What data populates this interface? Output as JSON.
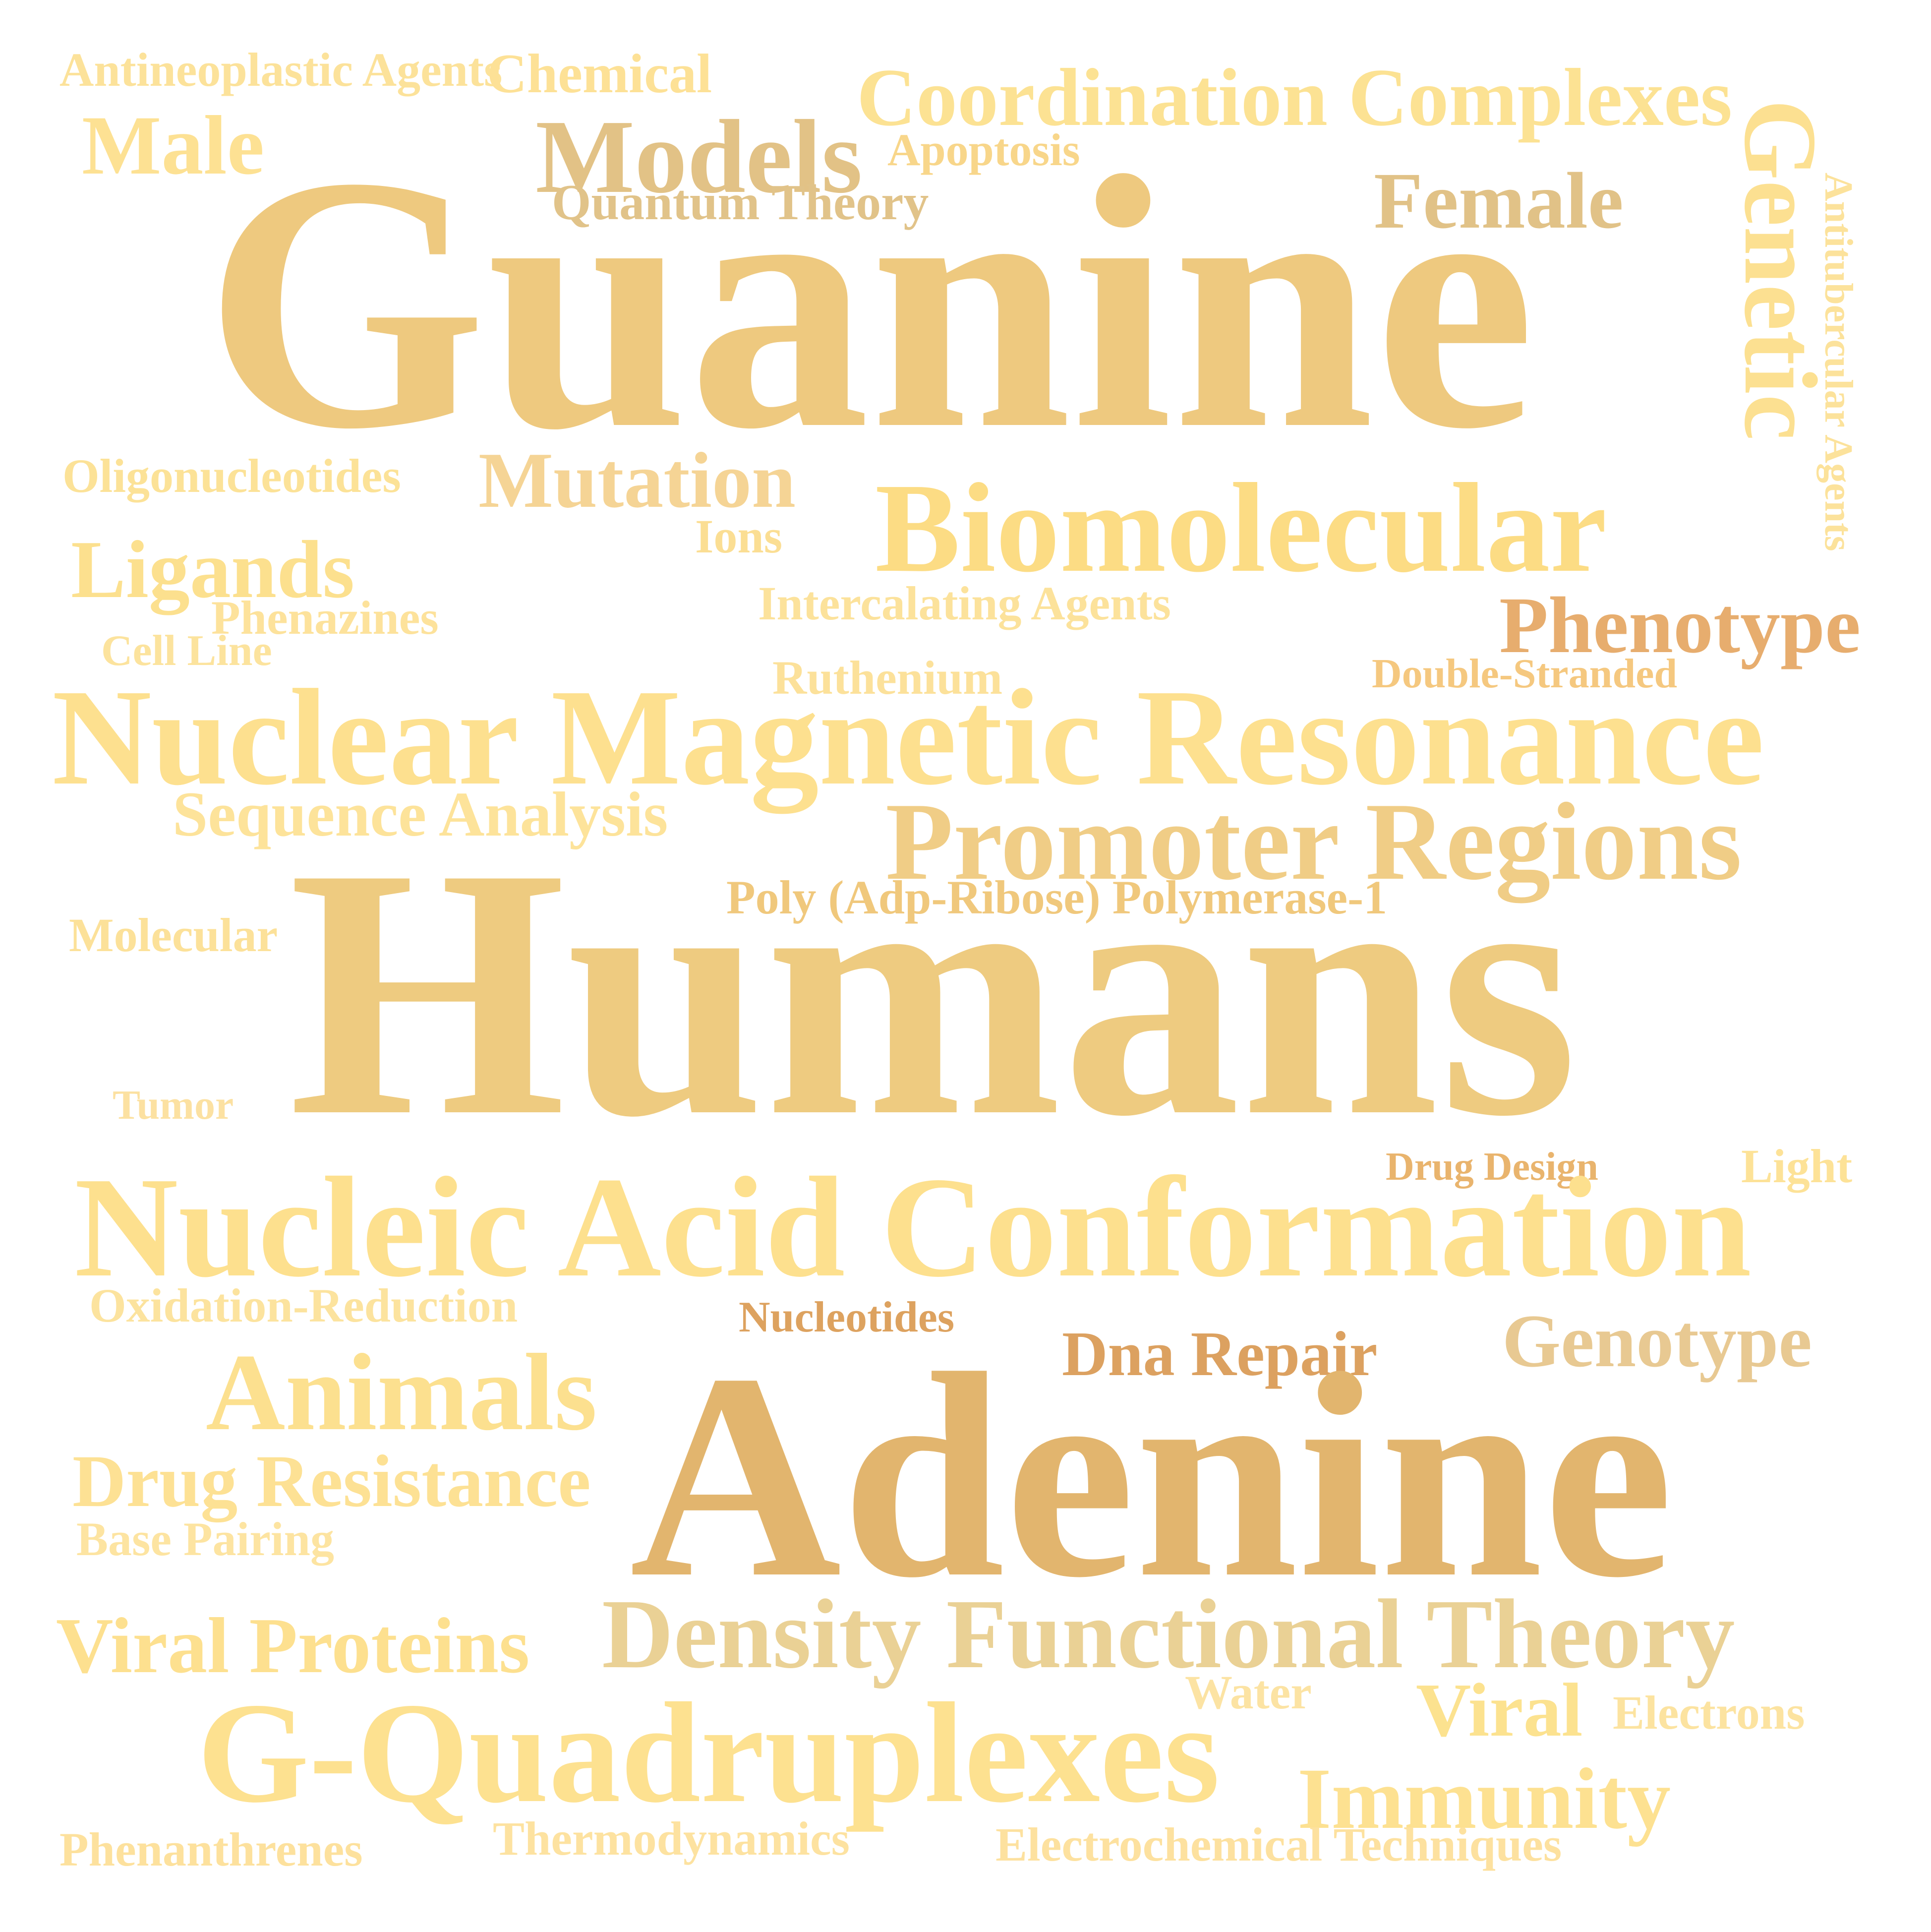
{
  "words": [
    {
      "text": "Antineoplastic Agents",
      "color": "#FCE29A"
    },
    {
      "text": "Chemical",
      "color": "#FDE196"
    },
    {
      "text": "Coordination Complexes",
      "color": "#FCE293"
    },
    {
      "text": "Male",
      "color": "#FDE193"
    },
    {
      "text": "Models",
      "color": "#E2C286"
    },
    {
      "text": "Apoptosis",
      "color": "#F8D68A"
    },
    {
      "text": "Quantum Theory",
      "color": "#E1C389"
    },
    {
      "text": "Female",
      "color": "#E1C287"
    },
    {
      "text": "Genetic",
      "color": "#FCE091"
    },
    {
      "text": "Antitubercular Agents",
      "color": "#FCE29B"
    },
    {
      "text": "Guanine",
      "color": "#EEC97F"
    },
    {
      "text": "Oligonucleotides",
      "color": "#FCE297"
    },
    {
      "text": "Mutation",
      "color": "#F5D495"
    },
    {
      "text": "Biomolecular",
      "color": "#FCDC84"
    },
    {
      "text": "Ions",
      "color": "#FBDE93"
    },
    {
      "text": "Ligands",
      "color": "#FCE08E"
    },
    {
      "text": "Phenazines",
      "color": "#FDE29B"
    },
    {
      "text": "Intercalating Agents",
      "color": "#FCE29B"
    },
    {
      "text": "Phenotype",
      "color": "#E7AD6E"
    },
    {
      "text": "Cell Line",
      "color": "#FCE39D"
    },
    {
      "text": "Ruthenium",
      "color": "#FCE19A"
    },
    {
      "text": "Double-Stranded",
      "color": "#F5C87F"
    },
    {
      "text": "Nuclear Magnetic Resonance",
      "color": "#FDE08F"
    },
    {
      "text": "Sequence Analysis",
      "color": "#FDE39A"
    },
    {
      "text": "Promoter Regions",
      "color": "#F0CD86"
    },
    {
      "text": "Poly (Adp-Ribose) Polymerase-1",
      "color": "#F0C87C"
    },
    {
      "text": "Molecular",
      "color": "#FCE199"
    },
    {
      "text": "Humans",
      "color": "#EECB80"
    },
    {
      "text": "Tumor",
      "color": "#FCE1A1"
    },
    {
      "text": "Drug Design",
      "color": "#E9B46D"
    },
    {
      "text": "Light",
      "color": "#FDE297"
    },
    {
      "text": "Nucleic Acid Conformation",
      "color": "#FDE08E"
    },
    {
      "text": "Oxidation-Reduction",
      "color": "#FCE39E"
    },
    {
      "text": "Nucleotides",
      "color": "#DDA25F"
    },
    {
      "text": "Genotype",
      "color": "#E8C992"
    },
    {
      "text": "Dna Repair",
      "color": "#DCA160"
    },
    {
      "text": "Animals",
      "color": "#FCE08F"
    },
    {
      "text": "Adenine",
      "color": "#E2B56E"
    },
    {
      "text": "Drug Resistance",
      "color": "#FDE194"
    },
    {
      "text": "Base Pairing",
      "color": "#FDE4A1"
    },
    {
      "text": "Viral Proteins",
      "color": "#FDE08F"
    },
    {
      "text": "Density Functional Theory",
      "color": "#EAD195"
    },
    {
      "text": "Water",
      "color": "#FCE3A3"
    },
    {
      "text": "Viral",
      "color": "#FCE28F"
    },
    {
      "text": "Electrons",
      "color": "#FCE3A0"
    },
    {
      "text": "G-Quadruplexes",
      "color": "#FDE190"
    },
    {
      "text": "Immunity",
      "color": "#FDE191"
    },
    {
      "text": "Phenanthrenes",
      "color": "#FDE19D"
    },
    {
      "text": "Thermodynamics",
      "color": "#FDE2A0"
    },
    {
      "text": "Electrochemical Techniques",
      "color": "#FDE19F"
    }
  ]
}
